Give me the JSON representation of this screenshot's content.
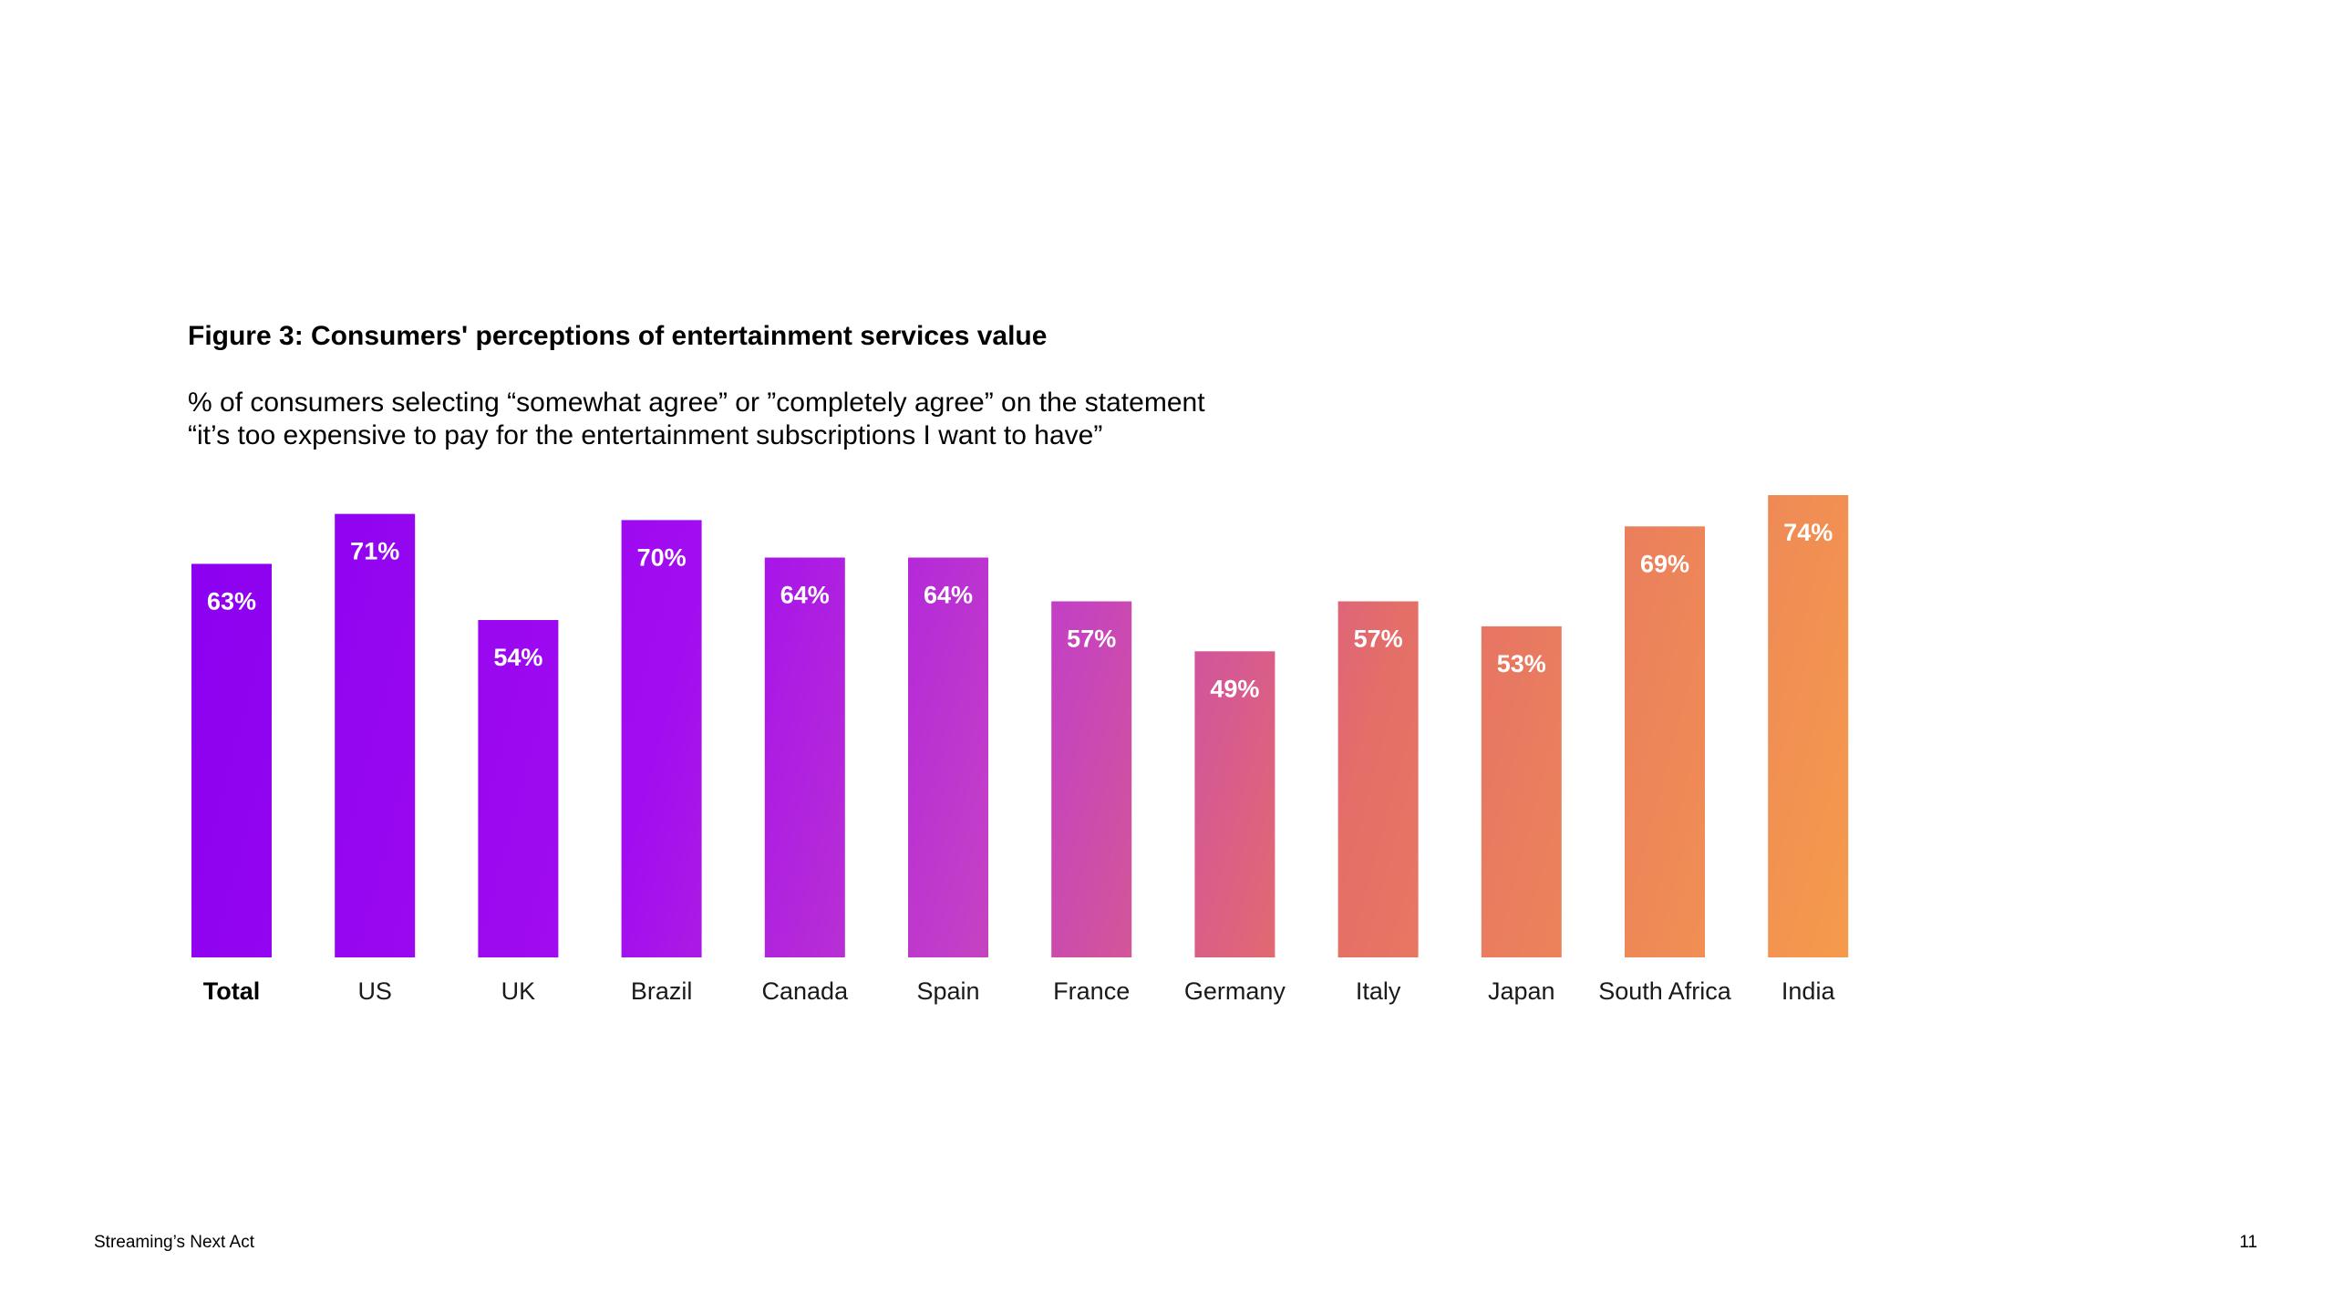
{
  "page": {
    "footer_left": "Streaming’s Next Act",
    "page_number": "11"
  },
  "colors": {
    "purple": "#8a00f0",
    "magenta": "#c23ec8",
    "coral": "#e46e68",
    "orange": "#f59a4c"
  },
  "chart_data": {
    "type": "bar",
    "title": "Figure 3: Consumers' perceptions of entertainment services value",
    "subtitle_lines": [
      "% of consumers selecting “somewhat agree” or ”completely agree” on the statement",
      "“it’s too expensive to pay for the entertainment subscriptions I want to have”"
    ],
    "categories": [
      "Total",
      "US",
      "UK",
      "Brazil",
      "Canada",
      "Spain",
      "France",
      "Germany",
      "Italy",
      "Japan",
      "South Africa",
      "India"
    ],
    "values": [
      63,
      71,
      54,
      70,
      64,
      64,
      57,
      49,
      57,
      53,
      69,
      74
    ],
    "data_labels": [
      "63%",
      "71%",
      "54%",
      "70%",
      "64%",
      "64%",
      "57%",
      "49%",
      "57%",
      "53%",
      "69%",
      "74%"
    ],
    "bold_category": "Total",
    "unit": "%",
    "xlabel": "",
    "ylabel": "",
    "ylim": [
      0,
      74
    ],
    "grid": false,
    "legend": "none"
  }
}
